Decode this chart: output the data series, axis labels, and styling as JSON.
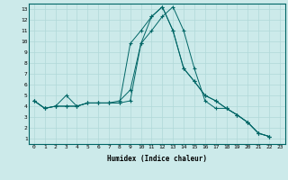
{
  "xlabel": "Humidex (Indice chaleur)",
  "ylabel": "",
  "background_color": "#cceaea",
  "line_color": "#006666",
  "grid_color": "#b0d8d8",
  "xlim": [
    -0.5,
    23.5
  ],
  "ylim": [
    0.5,
    13.5
  ],
  "xticks": [
    0,
    1,
    2,
    3,
    4,
    5,
    6,
    7,
    8,
    9,
    10,
    11,
    12,
    13,
    14,
    15,
    16,
    17,
    18,
    19,
    20,
    21,
    22,
    23
  ],
  "yticks": [
    1,
    2,
    3,
    4,
    5,
    6,
    7,
    8,
    9,
    10,
    11,
    12,
    13
  ],
  "series": [
    [
      4.5,
      3.8,
      4.0,
      5.0,
      4.0,
      4.3,
      4.3,
      4.3,
      4.3,
      9.8,
      11.0,
      12.3,
      13.2,
      11.0,
      7.5,
      6.3,
      5.0,
      4.5,
      3.8,
      3.2,
      2.5,
      1.5,
      1.2
    ],
    [
      4.5,
      3.8,
      4.0,
      4.0,
      4.0,
      4.3,
      4.3,
      4.3,
      4.5,
      5.5,
      9.8,
      12.3,
      13.2,
      11.0,
      7.5,
      6.3,
      5.0,
      4.5,
      3.8,
      3.2,
      2.5,
      1.5,
      1.2
    ],
    [
      4.5,
      3.8,
      4.0,
      4.0,
      4.0,
      4.3,
      4.3,
      4.3,
      4.3,
      4.5,
      9.8,
      11.0,
      12.3,
      13.2,
      11.0,
      7.5,
      4.5,
      3.8,
      3.8,
      3.2,
      2.5,
      1.5,
      1.2
    ]
  ]
}
